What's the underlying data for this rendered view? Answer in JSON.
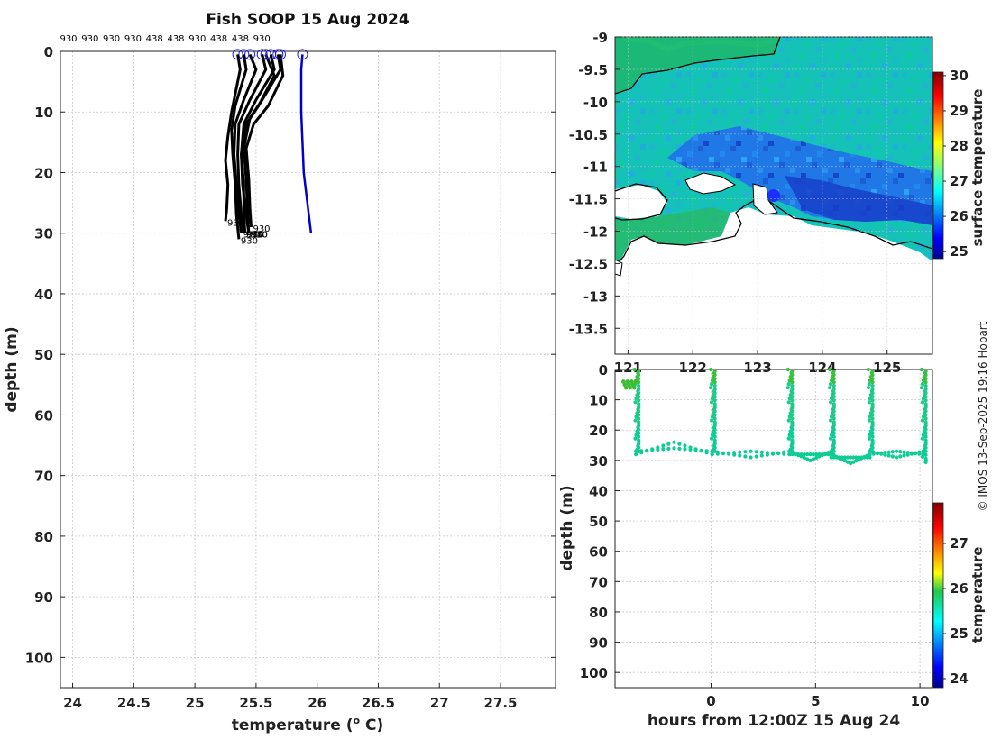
{
  "copyright": "© IMOS 13-Sep-2025 19:16 Hobart",
  "chart_data": [
    {
      "id": "profiles",
      "type": "line",
      "title": "Fish SOOP 15 Aug 2024",
      "xlabel": "temperature (",
      "xlabel_unit": "o",
      "xlabel_end": " C)",
      "ylabel": "depth (m)",
      "xlim": [
        23.9,
        27.95
      ],
      "ylim": [
        105,
        0
      ],
      "xticks": [
        "24",
        "24.5",
        "25",
        "25.5",
        "26",
        "26.5",
        "27",
        "27.5"
      ],
      "xtick_values": [
        24,
        24.5,
        25,
        25.5,
        26,
        26.5,
        27,
        27.5
      ],
      "yticks": [
        "0",
        "10",
        "20",
        "30",
        "40",
        "50",
        "60",
        "70",
        "80",
        "90",
        "100"
      ],
      "ytick_values": [
        0,
        10,
        20,
        30,
        40,
        50,
        60,
        70,
        80,
        90,
        100
      ],
      "top_labels": [
        "930",
        "930",
        "930",
        "930",
        "438",
        "438",
        "930",
        "438",
        "438",
        "930"
      ],
      "end_label": "930",
      "series": [
        {
          "name": "recent",
          "color": "#0000cc",
          "t": [
            25.88,
            25.87,
            25.87,
            25.88,
            25.89,
            25.92,
            25.95
          ],
          "d": [
            0.5,
            3,
            10,
            15,
            20,
            25,
            30
          ]
        },
        {
          "name": "p1",
          "color": "#000000",
          "t": [
            25.35,
            25.37,
            25.3,
            25.27,
            25.25,
            25.27,
            25.26,
            25.25
          ],
          "d": [
            0.5,
            3,
            10,
            14,
            18,
            22,
            26,
            28
          ]
        },
        {
          "name": "p2",
          "color": "#000000",
          "t": [
            25.4,
            25.42,
            25.33,
            25.3,
            25.31,
            25.33,
            25.34,
            25.36
          ],
          "d": [
            0.5,
            3,
            9,
            13,
            17,
            22,
            27,
            31
          ]
        },
        {
          "name": "p3",
          "color": "#000000",
          "t": [
            25.45,
            25.5,
            25.4,
            25.33,
            25.32,
            25.34,
            25.36,
            25.38
          ],
          "d": [
            0.5,
            3,
            8,
            12,
            17,
            22,
            27,
            30
          ]
        },
        {
          "name": "p4",
          "color": "#000000",
          "t": [
            25.55,
            25.58,
            25.45,
            25.36,
            25.35,
            25.36,
            25.38,
            25.4
          ],
          "d": [
            0.5,
            3,
            8,
            12,
            17,
            22,
            27,
            30
          ]
        },
        {
          "name": "p5",
          "color": "#000000",
          "t": [
            25.62,
            25.65,
            25.5,
            25.4,
            25.38,
            25.4,
            25.4,
            25.41
          ],
          "d": [
            0.5,
            3,
            8,
            12,
            17,
            22,
            27,
            30
          ]
        },
        {
          "name": "p6",
          "color": "#000000",
          "t": [
            25.68,
            25.7,
            25.55,
            25.45,
            25.4,
            25.42,
            25.43,
            25.44
          ],
          "d": [
            0.5,
            3,
            8,
            11,
            16,
            21,
            26,
            30
          ]
        },
        {
          "name": "p7",
          "color": "#000000",
          "t": [
            25.7,
            25.72,
            25.6,
            25.48,
            25.42,
            25.44,
            25.45,
            25.46
          ],
          "d": [
            0.5,
            4,
            9,
            12,
            16,
            21,
            26,
            29
          ]
        },
        {
          "name": "p8",
          "color": "#000000",
          "t": [
            25.58,
            25.65,
            25.52,
            25.42,
            25.38,
            25.39,
            25.42,
            25.44
          ],
          "d": [
            0.5,
            4,
            9,
            12,
            17,
            22,
            27,
            30
          ]
        }
      ]
    },
    {
      "id": "map",
      "type": "heatmap",
      "xlim": [
        120.8,
        125.7
      ],
      "ylim": [
        -13.9,
        -9
      ],
      "yticks": [
        "-9",
        "-9.5",
        "-10",
        "-10.5",
        "-11",
        "-11.5",
        "-12",
        "-12.5",
        "-13",
        "-13.5"
      ],
      "ytick_values": [
        -9,
        -9.5,
        -10,
        -10.5,
        -11,
        -11.5,
        -12,
        -12.5,
        -13,
        -13.5
      ],
      "xticks": [
        "121",
        "122",
        "123",
        "124",
        "125"
      ],
      "xtick_values": [
        121,
        122,
        123,
        124,
        125
      ],
      "colorbar_label": "surface temperature",
      "colorbar_ticks": [
        "25",
        "26",
        "27",
        "28",
        "29",
        "30"
      ],
      "colorbar_values": [
        25,
        26,
        27,
        28,
        29,
        30
      ],
      "clim": [
        24.8,
        30.1
      ],
      "track_point": [
        123.25,
        -11.45
      ]
    },
    {
      "id": "section",
      "type": "scatter",
      "xlabel": "hours from 12:00Z 15 Aug 24",
      "ylabel": "depth (m)",
      "xlim": [
        -4.6,
        10.6
      ],
      "ylim": [
        105,
        0
      ],
      "xticks": [
        "0",
        "5",
        "10"
      ],
      "xtick_values": [
        0,
        5,
        10
      ],
      "yticks": [
        "0",
        "10",
        "20",
        "30",
        "40",
        "50",
        "60",
        "70",
        "80",
        "90",
        "100"
      ],
      "ytick_values": [
        0,
        10,
        20,
        30,
        40,
        50,
        60,
        70,
        80,
        90,
        100
      ],
      "colorbar_label": "temperature",
      "colorbar_ticks": [
        "24",
        "25",
        "26",
        "27"
      ],
      "colorbar_values": [
        24,
        25,
        26,
        27
      ],
      "clim": [
        23.8,
        27.9
      ],
      "casts": [
        {
          "t": -3.6,
          "max": 27
        },
        {
          "t": 0.05,
          "max": 27
        },
        {
          "t": 3.75,
          "max": 27
        },
        {
          "t": 5.75,
          "max": 28
        },
        {
          "t": 7.6,
          "max": 27
        },
        {
          "t": 10.15,
          "max": 30
        }
      ],
      "troughs": [
        {
          "t": -1.8,
          "d": 26
        },
        {
          "t": 1.9,
          "d": 29
        },
        {
          "t": 4.75,
          "d": 30
        },
        {
          "t": 6.7,
          "d": 31
        },
        {
          "t": 8.9,
          "d": 29
        }
      ]
    }
  ]
}
